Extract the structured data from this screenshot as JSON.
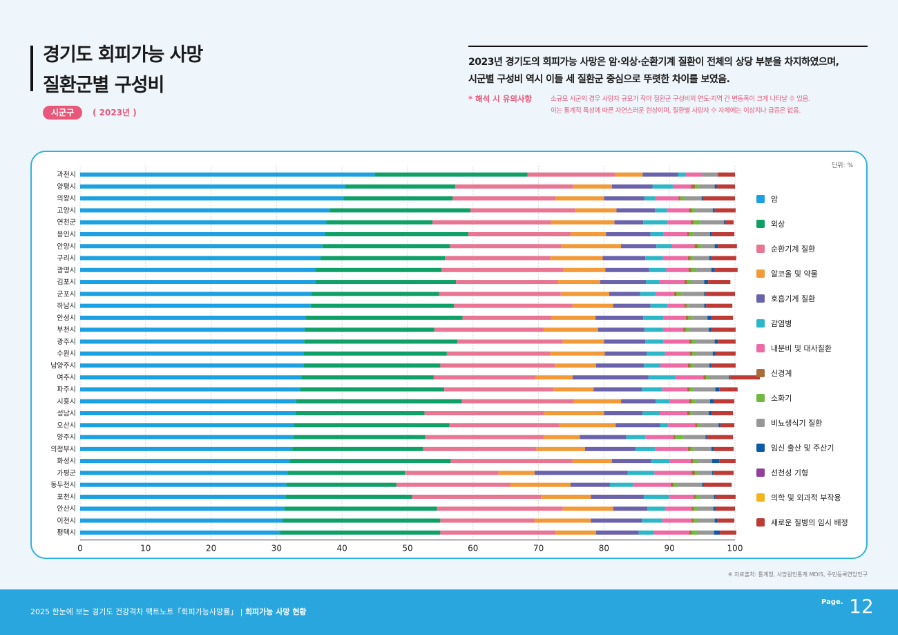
{
  "header": {
    "title_line1": "경기도 회피가능 사망",
    "title_line2": "질환군별 구성비",
    "pill": "시군구",
    "year": "( 2023년 )"
  },
  "summary": {
    "line1": "2023년 경기도의 회피가능 사망은 암·외상·순환기계 질환이 전체의 상당 부분을 차지하였으며,",
    "line2": "시군별 구성비 역시 이들 세 질환군 중심으로 뚜렷한 차이를 보였음.",
    "note_label": "* 해석 시 유의사항",
    "note_line1": "소규모 시군의 경우 사망자 규모가 작아 질환군 구성비의 연도·지역 간 변동폭이 크게 나타날 수 있음.",
    "note_line2": "이는 통계적 특성에 따른 자연스러운 현상이며, 질환별 사망자 수 자체에는 이상치나 급증은 없음."
  },
  "unit": "단위: %",
  "source": "※ 자료출처: 통계청, 사망원인통계 MDIS, 주민등록연앙인구",
  "footer": {
    "text": "2025 한눈에 보는 경기도 건강격차 팩트노트「회피가능사망률」 | ",
    "bold": "회피가능 사망 현황",
    "page_label": "Page.",
    "page_num": "12"
  },
  "colors": [
    "#1ba0e2",
    "#0fa067",
    "#e87592",
    "#f39a38",
    "#6a62ab",
    "#2bb7c7",
    "#ed6aa5",
    "#a86d3c",
    "#72b941",
    "#979797",
    "#0d5aa8",
    "#923f9c",
    "#f3b41b",
    "#bd3a35"
  ],
  "chart_data": {
    "type": "bar",
    "orientation": "horizontal",
    "stacked": true,
    "xlim": [
      0,
      100
    ],
    "xticks": [
      0,
      10,
      20,
      30,
      40,
      50,
      60,
      70,
      80,
      90,
      100
    ],
    "legend_position": "right",
    "categories": [
      "과천시",
      "양평시",
      "의왕시",
      "고양시",
      "연천군",
      "용인시",
      "안양시",
      "구리시",
      "광명시",
      "김포시",
      "군포시",
      "하남시",
      "안성시",
      "부천시",
      "광주시",
      "수원시",
      "남양주시",
      "여주시",
      "파주시",
      "시흥시",
      "성남시",
      "오산시",
      "양주시",
      "의정부시",
      "화성시",
      "가평군",
      "동두천시",
      "포천시",
      "안산시",
      "이천시",
      "평택시"
    ],
    "series": [
      {
        "name": "암",
        "values": [
          45.0,
          40.5,
          40.2,
          38.1,
          37.6,
          37.4,
          37.0,
          36.7,
          35.9,
          35.9,
          35.3,
          35.2,
          34.5,
          34.3,
          34.2,
          34.1,
          34.1,
          33.8,
          33.6,
          33.0,
          32.9,
          32.7,
          32.6,
          32.4,
          32.0,
          31.7,
          31.5,
          31.4,
          31.2,
          30.9,
          30.5
        ]
      },
      {
        "name": "외상",
        "values": [
          23.3,
          16.8,
          16.7,
          21.5,
          16.2,
          21.9,
          19.5,
          19.0,
          19.3,
          21.5,
          19.5,
          21.9,
          23.9,
          19.8,
          23.4,
          21.9,
          20.9,
          20.2,
          22.0,
          25.3,
          19.7,
          23.7,
          20.1,
          20.0,
          24.6,
          17.9,
          16.8,
          19.3,
          23.3,
          24.1,
          24.5
        ]
      },
      {
        "name": "순환기계 질환",
        "values": [
          13.4,
          18.0,
          15.7,
          16.0,
          18.1,
          15.6,
          17.0,
          16.1,
          18.6,
          15.6,
          18.6,
          18.1,
          13.6,
          16.7,
          16.1,
          15.8,
          17.5,
          15.6,
          16.7,
          17.1,
          18.3,
          16.7,
          18.1,
          17.3,
          18.6,
          14.3,
          17.4,
          19.7,
          19.2,
          14.4,
          17.6
        ]
      },
      {
        "name": "알코올 및 약물",
        "values": [
          4.2,
          5.9,
          7.4,
          6.3,
          9.7,
          5.4,
          9.1,
          8.0,
          6.4,
          6.4,
          7.4,
          6.2,
          6.7,
          8.3,
          6.3,
          8.3,
          6.3,
          5.6,
          6.1,
          7.2,
          9.1,
          8.7,
          5.5,
          7.4,
          6.0,
          5.5,
          9.2,
          7.6,
          7.7,
          8.6,
          6.2
        ]
      },
      {
        "name": "호흡기계 질환",
        "values": [
          5.4,
          6.2,
          6.2,
          5.9,
          4.4,
          6.8,
          5.4,
          6.5,
          6.7,
          7.0,
          4.7,
          5.7,
          7.3,
          7.1,
          6.3,
          6.4,
          7.3,
          11.6,
          7.4,
          5.3,
          5.9,
          6.8,
          7.1,
          7.7,
          6.0,
          14.2,
          6.0,
          8.1,
          5.2,
          7.8,
          6.5
        ]
      },
      {
        "name": "감염병",
        "values": [
          1.2,
          3.1,
          1.7,
          1.8,
          3.7,
          2.0,
          2.4,
          2.7,
          2.6,
          2.0,
          2.4,
          2.6,
          3.1,
          2.8,
          2.8,
          2.8,
          2.5,
          4.1,
          3.1,
          2.1,
          2.6,
          1.2,
          2.9,
          3.0,
          2.8,
          4.1,
          3.5,
          3.8,
          2.7,
          3.1,
          2.3
        ]
      },
      {
        "name": "내분비 및 대사질환",
        "values": [
          2.5,
          2.8,
          3.5,
          3.4,
          3.6,
          3.6,
          3.4,
          3.8,
          3.4,
          3.9,
          2.8,
          2.6,
          3.4,
          3.1,
          3.9,
          3.8,
          4.2,
          4.3,
          3.8,
          3.0,
          4.2,
          4.1,
          4.3,
          5.0,
          3.3,
          5.7,
          5.8,
          3.8,
          4.1,
          4.5,
          5.4
        ]
      },
      {
        "name": "신경계",
        "values": [
          0.0,
          0.6,
          0.3,
          0.4,
          0.4,
          0.3,
          0.5,
          0.4,
          0.4,
          0.4,
          0.4,
          0.3,
          0.4,
          0.4,
          0.4,
          0.4,
          0.4,
          0.4,
          0.4,
          0.4,
          0.4,
          0.3,
          0.3,
          0.4,
          0.3,
          0.5,
          0.4,
          0.3,
          0.3,
          0.3,
          0.4
        ]
      },
      {
        "name": "소화기",
        "values": [
          0.0,
          0.6,
          0.6,
          0.6,
          1.0,
          0.6,
          0.6,
          0.4,
          0.8,
          0.6,
          0.8,
          0.3,
          0.6,
          0.5,
          0.6,
          0.6,
          0.4,
          0.4,
          0.6,
          0.5,
          0.4,
          0.5,
          1.2,
          0.6,
          0.6,
          0.5,
          0.6,
          0.6,
          0.6,
          0.6,
          0.8
        ]
      },
      {
        "name": "비뇨생식기 질환",
        "values": [
          2.4,
          2.4,
          2.6,
          2.6,
          3.6,
          2.6,
          2.0,
          2.5,
          2.3,
          2.0,
          3.4,
          2.4,
          2.3,
          3.0,
          2.9,
          2.5,
          2.5,
          3.1,
          3.3,
          2.3,
          2.5,
          2.8,
          3.4,
          2.6,
          2.3,
          2.1,
          3.8,
          2.2,
          2.4,
          2.6,
          2.6
        ]
      },
      {
        "name": "임신 출산 및 주산기",
        "values": [
          0.0,
          0.3,
          0.2,
          0.3,
          0.2,
          0.3,
          0.5,
          0.3,
          0.5,
          0.6,
          0.2,
          0.3,
          0.6,
          0.4,
          0.5,
          0.4,
          0.3,
          0.2,
          0.6,
          0.6,
          0.5,
          0.3,
          0.2,
          0.4,
          1.1,
          0.2,
          0.2,
          0.2,
          0.3,
          0.4,
          0.9
        ]
      },
      {
        "name": "선천성 기형",
        "values": [
          0.0,
          0.0,
          0.0,
          0.0,
          0.0,
          0.0,
          0.0,
          0.0,
          0.0,
          0.0,
          0.0,
          0.0,
          0.0,
          0.0,
          0.0,
          0.0,
          0.0,
          0.0,
          0.0,
          0.0,
          0.0,
          0.0,
          0.0,
          0.0,
          0.0,
          0.0,
          0.0,
          0.0,
          0.0,
          0.0,
          0.0
        ]
      },
      {
        "name": "의학 및 외과적 부작용",
        "values": [
          0.0,
          0.0,
          0.0,
          0.0,
          0.0,
          0.0,
          0.0,
          0.0,
          0.0,
          0.0,
          0.0,
          0.0,
          0.0,
          0.0,
          0.0,
          0.0,
          0.0,
          0.0,
          0.0,
          0.0,
          0.0,
          0.0,
          0.0,
          0.0,
          0.0,
          0.0,
          0.0,
          0.0,
          0.0,
          0.0,
          0.0
        ]
      },
      {
        "name": "새로운 질병의 임시 배정",
        "values": [
          2.6,
          2.8,
          4.9,
          3.2,
          1.3,
          3.4,
          2.9,
          3.8,
          3.5,
          3.4,
          4.5,
          4.0,
          3.3,
          3.7,
          2.7,
          3.1,
          3.7,
          4.5,
          2.8,
          3.1,
          3.2,
          2.1,
          4.0,
          3.0,
          2.5,
          3.1,
          4.3,
          3.1,
          3.0,
          2.6,
          2.5
        ]
      }
    ]
  }
}
